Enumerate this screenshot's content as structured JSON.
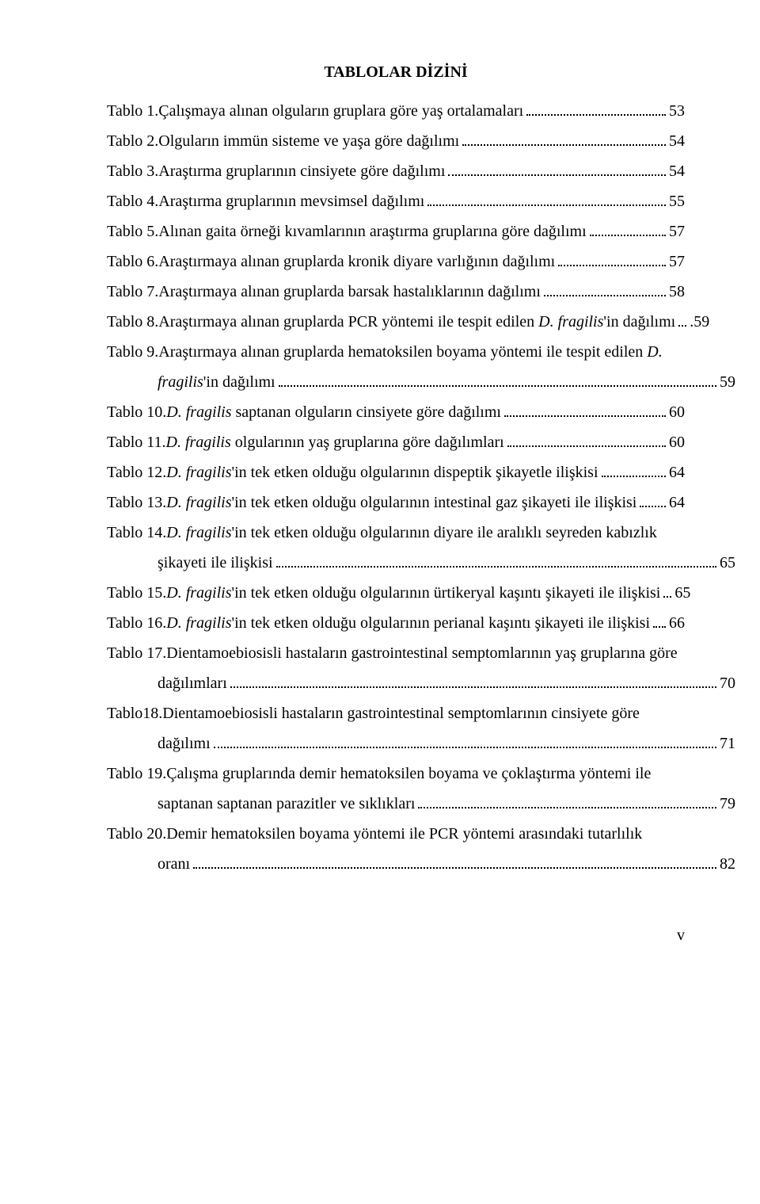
{
  "title": "TABLOLAR DİZİNİ",
  "entries": [
    {
      "label": "Tablo 1. ",
      "text": "Çalışmaya alınan olguların gruplara göre yaş ortalamaları",
      "page": "53"
    },
    {
      "label": "Tablo 2. ",
      "text": "Olguların immün sisteme ve yaşa göre dağılımı",
      "page": "54"
    },
    {
      "label": "Tablo 3. ",
      "text": "Araştırma gruplarının cinsiyete göre dağılımı",
      "page": "54"
    },
    {
      "label": "Tablo 4. ",
      "text": "Araştırma gruplarının mevsimsel dağılımı",
      "page": "55"
    },
    {
      "label": "Tablo 5. ",
      "text": "Alınan gaita örneği kıvamlarının araştırma gruplarına göre dağılımı",
      "page": "57"
    },
    {
      "label": "Tablo 6. ",
      "text": "Araştırmaya alınan gruplarda kronik diyare varlığının dağılımı",
      "page": "57"
    },
    {
      "label": "Tablo 7. ",
      "text": "Araştırmaya alınan gruplarda barsak hastalıklarının dağılımı",
      "page": "58"
    },
    {
      "label": "Tablo 8. ",
      "text_html": "Araştırmaya alınan gruplarda PCR yöntemi ile tespit edilen <span class=\"italic\">D. fragilis</span>'in dağılımı",
      "page": ".59"
    },
    {
      "label": "Tablo 9. ",
      "line1": "Araştırmaya alınan gruplarda hematoksilen boyama yöntemi ile tespit edilen <span class=\"italic\">D.</span>",
      "line2_html": "<span class=\"italic\">fragilis</span>'in dağılımı",
      "page": "59"
    },
    {
      "label": "Tablo 10. ",
      "text_html": "<span class=\"italic\">D. fragilis</span> saptanan olguların cinsiyete göre dağılımı",
      "page": "60"
    },
    {
      "label": "Tablo 11. ",
      "text_html": "<span class=\"italic\">D. fragilis</span> olgularının yaş gruplarına göre dağılımları",
      "page": "60"
    },
    {
      "label": "Tablo 12. ",
      "text_html": "<span class=\"italic\">D. fragilis</span>'in tek etken olduğu olgularının dispeptik şikayetle ilişkisi",
      "page": "64"
    },
    {
      "label": "Tablo 13. ",
      "text_html": "<span class=\"italic\">D. fragilis</span>'in tek etken olduğu olgularının intestinal gaz şikayeti ile ilişkisi",
      "page": "64"
    },
    {
      "label": "Tablo 14. ",
      "line1": "<span class=\"italic\">D. fragilis</span>'in tek etken olduğu olgularının diyare ile aralıklı seyreden kabızlık",
      "line2_html": "şikayeti ile ilişkisi",
      "page": "65"
    },
    {
      "label": "Tablo 15. ",
      "text_html": "<span class=\"italic\">D. fragilis</span>'in tek etken olduğu olgularının ürtikeryal kaşıntı şikayeti ile ilişkisi",
      "page": "65"
    },
    {
      "label": "Tablo 16. ",
      "text_html": "<span class=\"italic\">D. fragilis</span>'in tek etken olduğu olgularının perianal kaşıntı şikayeti ile ilişkisi",
      "page": "66"
    },
    {
      "label": "Tablo 17. ",
      "line1": "Dientamoebiosisli hastaların gastrointestinal semptomlarının yaş gruplarına göre",
      "line2_html": "dağılımları",
      "page": "70"
    },
    {
      "label": "Tablo18. ",
      "line1": "Dientamoebiosisli hastaların gastrointestinal semptomlarının cinsiyete göre",
      "line2_html": "dağılımı",
      "page": "71"
    },
    {
      "label": "Tablo 19. ",
      "line1": "Çalışma gruplarında demir hematoksilen boyama ve çoklaştırma yöntemi ile",
      "line2_html": "saptanan  saptanan parazitler ve sıklıkları",
      "page": "79"
    },
    {
      "label": "Tablo 20. ",
      "line1": "Demir hematoksilen boyama yöntemi ile PCR yöntemi arasındaki tutarlılık",
      "line2_html": "oranı",
      "page": " 82"
    }
  ],
  "footer_page": "v"
}
